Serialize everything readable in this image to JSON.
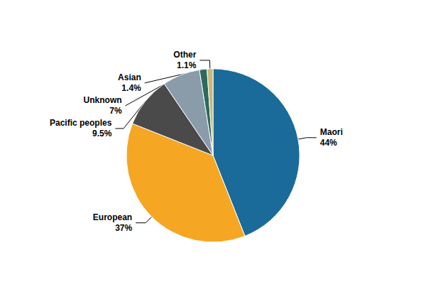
{
  "chart_data": {
    "type": "pie",
    "categories": [
      "Maori",
      "European",
      "Pacific peoples",
      "Unknown",
      "Asian",
      "Other"
    ],
    "values": [
      44,
      37,
      9.5,
      7,
      1.4,
      1.1
    ],
    "value_labels": [
      "44%",
      "37%",
      "9.5%",
      "7%",
      "1.4%",
      "1.1%"
    ],
    "colors": [
      "#1a6b9a",
      "#f5a623",
      "#4a4a4a",
      "#8a9baa",
      "#2a6b5e",
      "#c8b87a"
    ],
    "data_labels": true
  }
}
